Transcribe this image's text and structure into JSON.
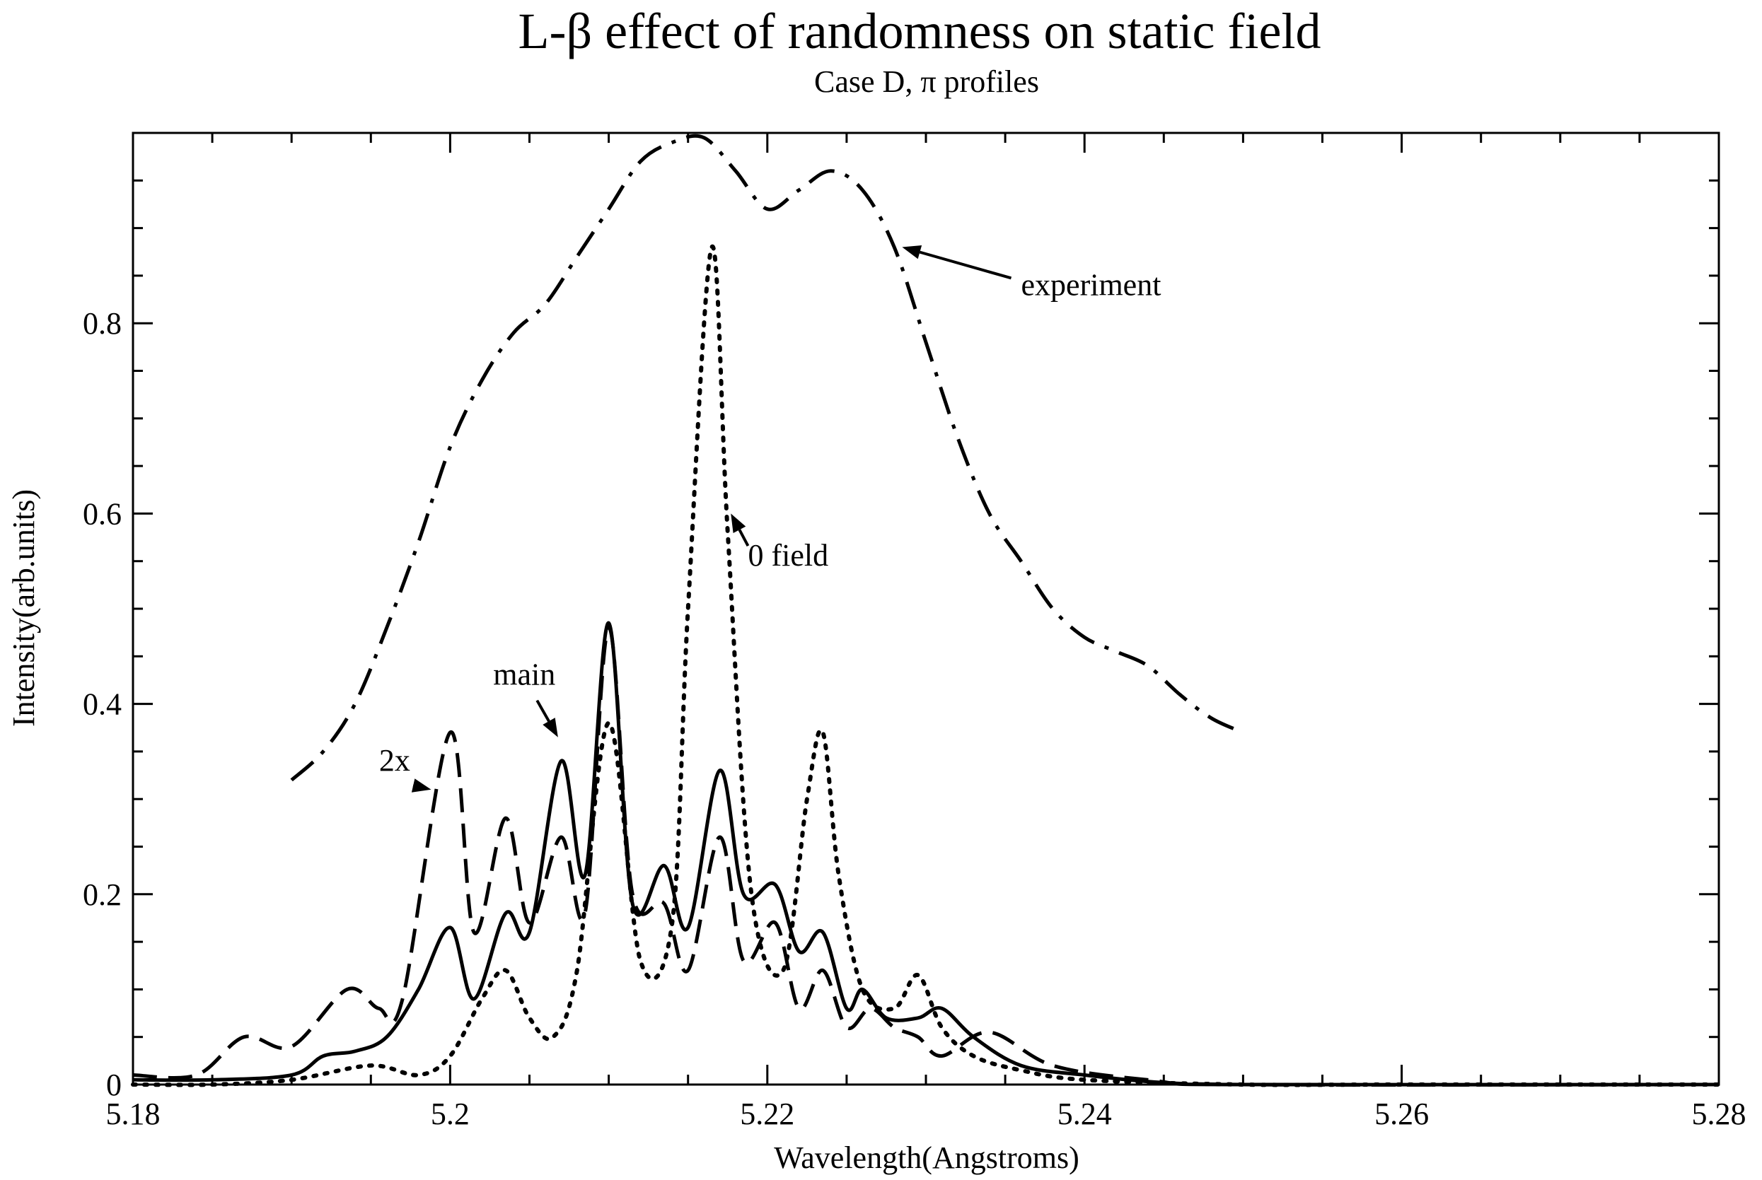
{
  "chart_data": {
    "type": "line",
    "title": "L-β effect of randomness on static field",
    "subtitle": "Case D, π profiles",
    "xlabel": "Wavelength(Angstroms)",
    "ylabel": "Intensity(arb.units)",
    "xlim": [
      5.18,
      5.28
    ],
    "ylim": [
      0,
      1.0
    ],
    "x_ticks": [
      5.18,
      5.2,
      5.22,
      5.24,
      5.26,
      5.28
    ],
    "x_tick_labels": [
      "5.18",
      "5.2",
      "5.22",
      "5.24",
      "5.26",
      "5.28"
    ],
    "y_ticks": [
      0,
      0.2,
      0.4,
      0.6,
      0.8
    ],
    "y_tick_labels": [
      "0",
      "0.2",
      "0.4",
      "0.6",
      "0.8"
    ],
    "grid": false,
    "series": [
      {
        "name": "experiment",
        "style": "dash-dot",
        "x": [
          5.19,
          5.192,
          5.194,
          5.196,
          5.198,
          5.2,
          5.202,
          5.204,
          5.206,
          5.208,
          5.21,
          5.212,
          5.214,
          5.216,
          5.218,
          5.22,
          5.222,
          5.224,
          5.226,
          5.228,
          5.23,
          5.232,
          5.234,
          5.236,
          5.238,
          5.24,
          5.242,
          5.244,
          5.246,
          5.248,
          5.25
        ],
        "values": [
          0.32,
          0.35,
          0.4,
          0.48,
          0.57,
          0.67,
          0.74,
          0.79,
          0.82,
          0.87,
          0.92,
          0.97,
          0.99,
          0.995,
          0.96,
          0.92,
          0.94,
          0.96,
          0.94,
          0.88,
          0.78,
          0.68,
          0.6,
          0.55,
          0.5,
          0.47,
          0.455,
          0.44,
          0.41,
          0.385,
          0.37
        ]
      },
      {
        "name": "0 field",
        "style": "dotted",
        "x": [
          5.18,
          5.185,
          5.19,
          5.195,
          5.198,
          5.2,
          5.202,
          5.2035,
          5.205,
          5.2065,
          5.208,
          5.21,
          5.212,
          5.214,
          5.215,
          5.2165,
          5.2175,
          5.219,
          5.221,
          5.2225,
          5.2235,
          5.2245,
          5.226,
          5.228,
          5.2295,
          5.231,
          5.233,
          5.236,
          5.24,
          5.25,
          5.26,
          5.28
        ],
        "values": [
          0.0,
          0.0,
          0.005,
          0.02,
          0.01,
          0.03,
          0.09,
          0.12,
          0.07,
          0.05,
          0.12,
          0.38,
          0.13,
          0.17,
          0.5,
          0.88,
          0.58,
          0.2,
          0.12,
          0.3,
          0.37,
          0.22,
          0.1,
          0.08,
          0.115,
          0.06,
          0.03,
          0.015,
          0.005,
          0.0,
          0.0,
          0.0
        ]
      },
      {
        "name": "main",
        "style": "solid",
        "x": [
          5.18,
          5.185,
          5.19,
          5.192,
          5.194,
          5.196,
          5.198,
          5.2,
          5.2015,
          5.2035,
          5.205,
          5.207,
          5.2085,
          5.21,
          5.2115,
          5.2135,
          5.215,
          5.217,
          5.2185,
          5.2205,
          5.222,
          5.2235,
          5.225,
          5.226,
          5.2275,
          5.2295,
          5.231,
          5.233,
          5.236,
          5.24,
          5.245,
          5.25,
          5.28
        ],
        "values": [
          0.005,
          0.005,
          0.01,
          0.03,
          0.035,
          0.05,
          0.1,
          0.165,
          0.09,
          0.18,
          0.16,
          0.34,
          0.22,
          0.485,
          0.19,
          0.23,
          0.165,
          0.33,
          0.2,
          0.21,
          0.14,
          0.16,
          0.08,
          0.1,
          0.07,
          0.07,
          0.08,
          0.05,
          0.02,
          0.01,
          0.002,
          0.0,
          0.0
        ]
      },
      {
        "name": "2x",
        "style": "dashed",
        "x": [
          5.18,
          5.184,
          5.187,
          5.19,
          5.1935,
          5.1955,
          5.197,
          5.2,
          5.2015,
          5.2035,
          5.205,
          5.207,
          5.2085,
          5.21,
          5.2115,
          5.2135,
          5.215,
          5.217,
          5.2185,
          5.2205,
          5.222,
          5.2235,
          5.225,
          5.2265,
          5.228,
          5.2295,
          5.231,
          5.234,
          5.238,
          5.244,
          5.25,
          5.28
        ],
        "values": [
          0.01,
          0.01,
          0.05,
          0.04,
          0.1,
          0.08,
          0.09,
          0.37,
          0.16,
          0.28,
          0.17,
          0.26,
          0.18,
          0.48,
          0.2,
          0.19,
          0.12,
          0.26,
          0.13,
          0.17,
          0.08,
          0.12,
          0.06,
          0.08,
          0.06,
          0.05,
          0.03,
          0.055,
          0.02,
          0.005,
          0.0,
          0.0
        ]
      }
    ],
    "annotations": [
      {
        "text": "experiment",
        "target_series": "experiment",
        "text_at": [
          5.236,
          0.84
        ],
        "arrow_to": [
          5.2285,
          0.88
        ]
      },
      {
        "text": "0 field",
        "target_series": "0 field",
        "text_at": [
          5.2178,
          0.575
        ],
        "arrow_to": [
          5.2177,
          0.6
        ]
      },
      {
        "text": "main",
        "target_series": "main",
        "text_at": [
          5.202,
          0.42
        ],
        "arrow_to": [
          5.2068,
          0.365
        ]
      },
      {
        "text": "2x",
        "target_series": "2x",
        "text_at": [
          5.1965,
          0.33
        ],
        "arrow_to": [
          5.1988,
          0.31
        ]
      }
    ]
  }
}
